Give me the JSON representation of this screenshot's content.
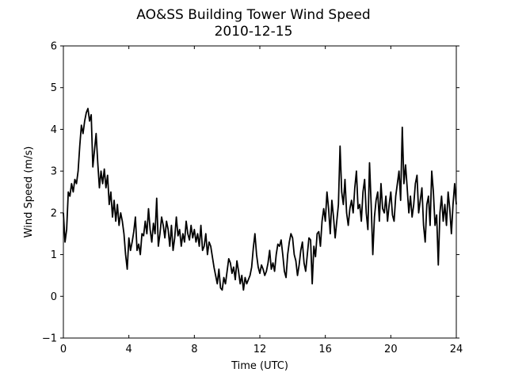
{
  "chart_data": {
    "type": "line",
    "title": "AO&SS Building Tower Wind Speed",
    "subtitle": "2010-12-15",
    "xlabel": "Time (UTC)",
    "ylabel": "Wind Speed (m/s)",
    "xlim": [
      0,
      24
    ],
    "ylim": [
      -1,
      6
    ],
    "xticks": [
      0,
      4,
      8,
      12,
      16,
      20,
      24
    ],
    "yticks": [
      -1,
      0,
      1,
      2,
      3,
      4,
      5,
      6
    ],
    "xtick_labels": [
      "0",
      "4",
      "8",
      "12",
      "16",
      "20",
      "24"
    ],
    "ytick_labels": [
      "−1",
      "0",
      "1",
      "2",
      "3",
      "4",
      "5",
      "6"
    ],
    "grid": false,
    "line_color": "#000000",
    "series": [
      {
        "x": [
          0.0,
          0.1,
          0.2,
          0.3,
          0.4,
          0.5,
          0.6,
          0.7,
          0.8,
          0.9,
          1.0,
          1.1,
          1.2,
          1.3,
          1.4,
          1.5,
          1.6,
          1.7,
          1.8,
          1.9,
          2.0,
          2.1,
          2.2,
          2.3,
          2.4,
          2.5,
          2.6,
          2.7,
          2.8,
          2.9,
          3.0,
          3.1,
          3.2,
          3.3,
          3.4,
          3.5,
          3.6,
          3.7,
          3.8,
          3.9,
          4.0,
          4.1,
          4.2,
          4.3,
          4.4,
          4.5,
          4.6,
          4.7,
          4.8,
          4.9,
          5.0,
          5.1,
          5.2,
          5.3,
          5.4,
          5.5,
          5.6,
          5.7,
          5.8,
          5.9,
          6.0,
          6.1,
          6.2,
          6.3,
          6.4,
          6.5,
          6.6,
          6.7,
          6.8,
          6.9,
          7.0,
          7.1,
          7.2,
          7.3,
          7.4,
          7.5,
          7.6,
          7.7,
          7.8,
          7.9,
          8.0,
          8.1,
          8.2,
          8.3,
          8.4,
          8.5,
          8.6,
          8.7,
          8.8,
          8.9,
          9.0,
          9.1,
          9.2,
          9.3,
          9.4,
          9.5,
          9.6,
          9.7,
          9.8,
          9.9,
          10.0,
          10.1,
          10.2,
          10.3,
          10.4,
          10.5,
          10.6,
          10.7,
          10.8,
          10.9,
          11.0,
          11.1,
          11.2,
          11.3,
          11.4,
          11.5,
          11.6,
          11.7,
          11.8,
          11.9,
          12.0,
          12.1,
          12.2,
          12.3,
          12.4,
          12.5,
          12.6,
          12.7,
          12.8,
          12.9,
          13.0,
          13.1,
          13.2,
          13.3,
          13.4,
          13.5,
          13.6,
          13.7,
          13.8,
          13.9,
          14.0,
          14.1,
          14.2,
          14.3,
          14.4,
          14.5,
          14.6,
          14.7,
          14.8,
          14.9,
          15.0,
          15.1,
          15.2,
          15.3,
          15.4,
          15.5,
          15.6,
          15.7,
          15.8,
          15.9,
          16.0,
          16.1,
          16.2,
          16.3,
          16.4,
          16.5,
          16.6,
          16.7,
          16.8,
          16.9,
          17.0,
          17.1,
          17.2,
          17.3,
          17.4,
          17.5,
          17.6,
          17.7,
          17.8,
          17.9,
          18.0,
          18.1,
          18.2,
          18.3,
          18.4,
          18.5,
          18.6,
          18.7,
          18.8,
          18.9,
          19.0,
          19.1,
          19.2,
          19.3,
          19.4,
          19.5,
          19.6,
          19.7,
          19.8,
          19.9,
          20.0,
          20.1,
          20.2,
          20.3,
          20.4,
          20.5,
          20.6,
          20.7,
          20.8,
          20.9,
          21.0,
          21.1,
          21.2,
          21.3,
          21.4,
          21.5,
          21.6,
          21.7,
          21.8,
          21.9,
          22.0,
          22.1,
          22.2,
          22.3,
          22.4,
          22.5,
          22.6,
          22.7,
          22.8,
          22.9,
          23.0,
          23.1,
          23.2,
          23.3,
          23.4,
          23.5,
          23.6,
          23.7,
          23.8,
          23.9,
          24.0
        ],
        "y": [
          2.0,
          1.3,
          1.6,
          2.5,
          2.4,
          2.7,
          2.5,
          2.8,
          2.7,
          3.0,
          3.6,
          4.1,
          3.9,
          4.2,
          4.4,
          4.5,
          4.2,
          4.35,
          3.1,
          3.5,
          3.9,
          3.2,
          2.6,
          3.0,
          2.7,
          3.05,
          2.6,
          2.9,
          2.2,
          2.5,
          1.9,
          2.3,
          1.8,
          2.2,
          1.7,
          2.0,
          1.8,
          1.5,
          1.0,
          0.65,
          1.4,
          1.1,
          1.3,
          1.55,
          1.9,
          1.1,
          1.25,
          1.0,
          1.5,
          1.45,
          1.8,
          1.5,
          2.1,
          1.6,
          1.3,
          1.75,
          1.5,
          2.35,
          1.2,
          1.5,
          1.9,
          1.7,
          1.4,
          1.8,
          1.6,
          1.2,
          1.7,
          1.1,
          1.4,
          1.9,
          1.45,
          1.6,
          1.2,
          1.5,
          1.3,
          1.8,
          1.5,
          1.35,
          1.7,
          1.4,
          1.6,
          1.3,
          1.5,
          1.2,
          1.7,
          1.1,
          1.2,
          1.5,
          1.0,
          1.3,
          1.2,
          0.95,
          0.7,
          0.5,
          0.3,
          0.65,
          0.2,
          0.15,
          0.45,
          0.3,
          0.6,
          0.9,
          0.8,
          0.55,
          0.7,
          0.4,
          0.85,
          0.6,
          0.3,
          0.5,
          0.15,
          0.45,
          0.3,
          0.4,
          0.5,
          0.7,
          1.15,
          1.5,
          1.0,
          0.7,
          0.55,
          0.75,
          0.65,
          0.5,
          0.6,
          0.8,
          1.1,
          0.65,
          0.8,
          0.6,
          1.0,
          1.25,
          1.2,
          1.35,
          1.0,
          0.6,
          0.45,
          1.0,
          1.3,
          1.5,
          1.4,
          1.0,
          0.85,
          0.5,
          0.75,
          1.1,
          1.3,
          0.8,
          0.6,
          1.0,
          1.4,
          1.35,
          0.3,
          1.2,
          0.95,
          1.5,
          1.55,
          1.2,
          1.8,
          2.1,
          1.8,
          2.5,
          2.1,
          1.5,
          2.3,
          1.9,
          1.4,
          1.8,
          2.2,
          3.6,
          2.5,
          2.2,
          2.8,
          2.0,
          1.7,
          2.1,
          2.3,
          2.0,
          2.6,
          3.0,
          2.1,
          2.2,
          1.8,
          2.5,
          2.8,
          2.0,
          1.6,
          3.2,
          2.2,
          1.0,
          1.9,
          2.3,
          2.5,
          1.8,
          2.7,
          2.1,
          2.0,
          2.4,
          1.8,
          2.2,
          2.5,
          1.95,
          1.8,
          2.4,
          2.7,
          3.0,
          2.3,
          4.05,
          2.7,
          3.15,
          2.6,
          2.0,
          2.4,
          1.9,
          2.2,
          2.7,
          2.9,
          2.0,
          2.3,
          2.6,
          1.7,
          1.3,
          2.2,
          2.4,
          1.7,
          3.0,
          2.5,
          1.7,
          1.95,
          0.75,
          2.0,
          2.4,
          1.8,
          2.2,
          1.7,
          2.5,
          2.1,
          1.5,
          2.2,
          2.7,
          2.2
        ]
      }
    ]
  }
}
